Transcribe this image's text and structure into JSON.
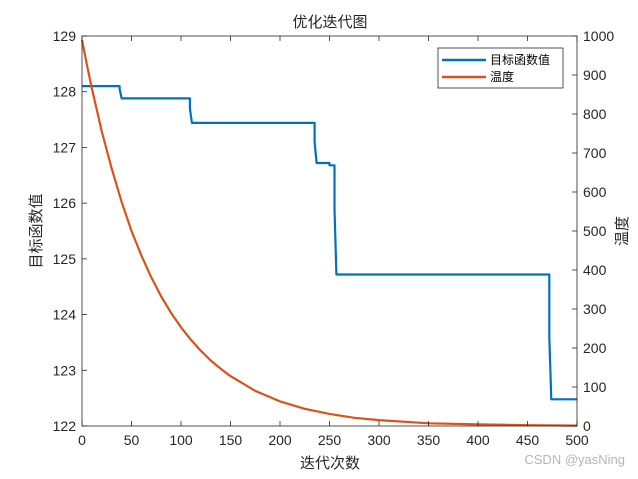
{
  "chart_data": {
    "type": "line",
    "title": "优化迭代图",
    "xlabel": "迭代次数",
    "ylabel_left": "目标函数值",
    "ylabel_right": "温度",
    "xlim": [
      0,
      500
    ],
    "ylim_left": [
      122,
      129
    ],
    "ylim_right": [
      0,
      1000
    ],
    "x_ticks": [
      0,
      50,
      100,
      150,
      200,
      250,
      300,
      350,
      400,
      450,
      500
    ],
    "y_left_ticks": [
      122,
      123,
      124,
      125,
      126,
      127,
      128,
      129
    ],
    "y_right_ticks": [
      0,
      100,
      200,
      300,
      400,
      500,
      600,
      700,
      800,
      900,
      1000
    ],
    "legend_position": "top-right",
    "grid": false,
    "series": [
      {
        "name": "目标函数值",
        "axis": "left",
        "color": "#0072BD",
        "x": [
          0,
          38,
          38,
          40,
          40,
          109,
          109,
          111,
          111,
          235,
          235,
          237,
          237,
          250,
          250,
          255,
          255,
          257,
          257,
          472,
          472,
          474,
          474,
          500
        ],
        "y": [
          128.1,
          128.1,
          128.05,
          127.88,
          127.88,
          127.88,
          127.7,
          127.44,
          127.44,
          127.44,
          127.1,
          126.72,
          126.72,
          126.72,
          126.68,
          126.68,
          125.9,
          124.72,
          124.72,
          124.72,
          123.6,
          122.48,
          122.48,
          122.48
        ]
      },
      {
        "name": "温度",
        "axis": "right",
        "color": "#D95319",
        "x": [
          0,
          5,
          10,
          20,
          30,
          40,
          50,
          60,
          70,
          80,
          90,
          100,
          110,
          120,
          130,
          140,
          150,
          175,
          200,
          225,
          250,
          275,
          300,
          350,
          400,
          450,
          500
        ],
        "y": [
          990,
          925,
          865,
          755,
          660,
          575,
          500,
          437,
          381,
          332,
          290,
          253,
          221,
          193,
          168,
          147,
          128,
          90,
          63,
          44,
          31,
          21,
          15,
          7,
          4,
          2,
          1
        ]
      }
    ]
  },
  "watermark": "CSDN @yasNing"
}
